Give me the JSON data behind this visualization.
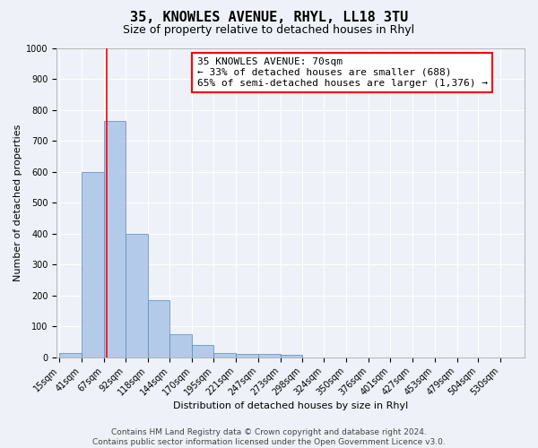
{
  "title": "35, KNOWLES AVENUE, RHYL, LL18 3TU",
  "subtitle": "Size of property relative to detached houses in Rhyl",
  "xlabel": "Distribution of detached houses by size in Rhyl",
  "ylabel": "Number of detached properties",
  "bin_labels": [
    "15sqm",
    "41sqm",
    "67sqm",
    "92sqm",
    "118sqm",
    "144sqm",
    "170sqm",
    "195sqm",
    "221sqm",
    "247sqm",
    "273sqm",
    "298sqm",
    "324sqm",
    "350sqm",
    "376sqm",
    "401sqm",
    "427sqm",
    "453sqm",
    "479sqm",
    "504sqm",
    "530sqm"
  ],
  "bar_values": [
    15,
    600,
    765,
    400,
    185,
    75,
    40,
    15,
    10,
    10,
    8,
    0,
    0,
    0,
    0,
    0,
    0,
    0,
    0,
    0,
    0
  ],
  "bar_color": "#aec6e8",
  "bar_edge_color": "#5a8fc0",
  "vline_x": 70,
  "vline_color": "red",
  "annotation_title": "35 KNOWLES AVENUE: 70sqm",
  "annotation_line1": "← 33% of detached houses are smaller (688)",
  "annotation_line2": "65% of semi-detached houses are larger (1,376) →",
  "annotation_box_color": "white",
  "annotation_box_edge": "red",
  "ylim": [
    0,
    1000
  ],
  "yticks": [
    0,
    100,
    200,
    300,
    400,
    500,
    600,
    700,
    800,
    900,
    1000
  ],
  "footer_line1": "Contains HM Land Registry data © Crown copyright and database right 2024.",
  "footer_line2": "Contains public sector information licensed under the Open Government Licence v3.0.",
  "background_color": "#eef2f8",
  "grid_color": "#ffffff",
  "title_fontsize": 11,
  "subtitle_fontsize": 9,
  "axis_label_fontsize": 8,
  "tick_fontsize": 7,
  "annotation_fontsize": 8,
  "footer_fontsize": 6.5
}
